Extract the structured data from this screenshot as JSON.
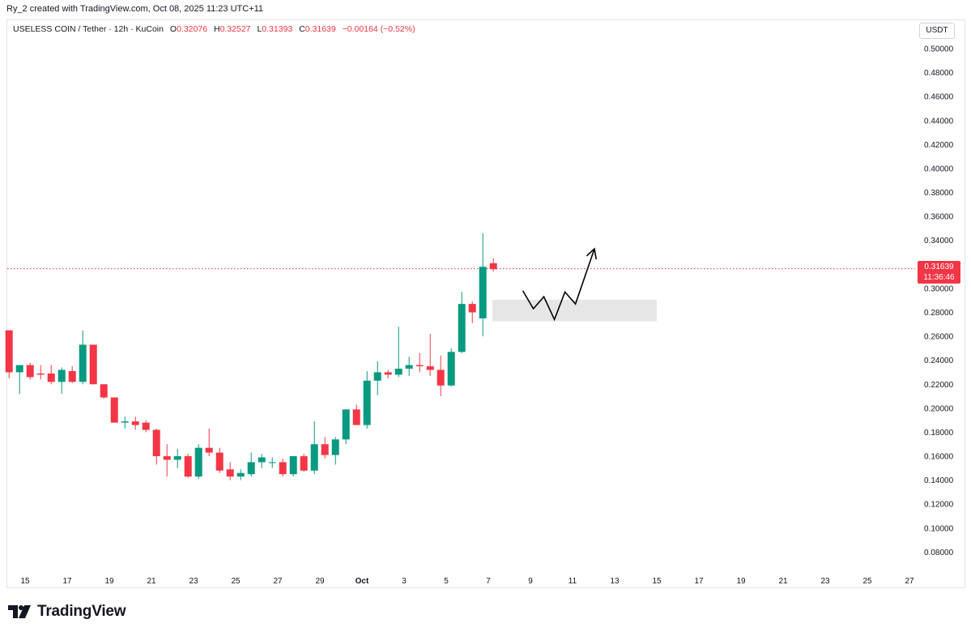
{
  "header": {
    "credit": "Ry_2 created with TradingView.com, Oct 08, 2025 11:23 UTC+11"
  },
  "legend": {
    "symbol": "USELESS COIN / Tether · 12h · KuCoin",
    "open_label": "O",
    "open": "0.32076",
    "high_label": "H",
    "high": "0.32527",
    "low_label": "L",
    "low": "0.31393",
    "close_label": "C",
    "close": "0.31639",
    "change": "−0.00164 (−0.52%)"
  },
  "price_axis": {
    "unit": "USDT"
  },
  "last_price": {
    "value": "0.31639",
    "countdown": "11:36:46",
    "color": "#f23645"
  },
  "footer": {
    "brand": "TradingView"
  },
  "colors": {
    "up": "#089981",
    "down": "#f23645",
    "zone": "#e0e0e0",
    "arrow": "#000000"
  },
  "chart_data": {
    "type": "candlestick",
    "interval": "12h",
    "ylim": [
      0.065,
      0.515
    ],
    "y_ticks": [
      "0.50000",
      "0.48000",
      "0.46000",
      "0.44000",
      "0.42000",
      "0.40000",
      "0.38000",
      "0.36000",
      "0.34000",
      "0.32000",
      "0.30000",
      "0.28000",
      "0.26000",
      "0.24000",
      "0.22000",
      "0.20000",
      "0.18000",
      "0.16000",
      "0.14000",
      "0.12000",
      "0.10000",
      "0.08000"
    ],
    "x_ticks": [
      "15",
      "17",
      "19",
      "21",
      "23",
      "25",
      "27",
      "29",
      "Oct",
      "3",
      "5",
      "7",
      "9",
      "11",
      "13",
      "15",
      "17",
      "19",
      "21",
      "23",
      "25",
      "27"
    ],
    "candles": [
      {
        "o": 0.265,
        "h": 0.265,
        "l": 0.225,
        "c": 0.23
      },
      {
        "o": 0.23,
        "h": 0.235,
        "l": 0.212,
        "c": 0.236
      },
      {
        "o": 0.236,
        "h": 0.238,
        "l": 0.224,
        "c": 0.226
      },
      {
        "o": 0.229,
        "h": 0.236,
        "l": 0.224,
        "c": 0.228
      },
      {
        "o": 0.229,
        "h": 0.236,
        "l": 0.22,
        "c": 0.222
      },
      {
        "o": 0.222,
        "h": 0.234,
        "l": 0.212,
        "c": 0.232
      },
      {
        "o": 0.231,
        "h": 0.235,
        "l": 0.221,
        "c": 0.222
      },
      {
        "o": 0.222,
        "h": 0.265,
        "l": 0.22,
        "c": 0.253
      },
      {
        "o": 0.253,
        "h": 0.253,
        "l": 0.22,
        "c": 0.22
      },
      {
        "o": 0.22,
        "h": 0.22,
        "l": 0.208,
        "c": 0.209
      },
      {
        "o": 0.209,
        "h": 0.209,
        "l": 0.188,
        "c": 0.188
      },
      {
        "o": 0.188,
        "h": 0.193,
        "l": 0.183,
        "c": 0.189
      },
      {
        "o": 0.189,
        "h": 0.193,
        "l": 0.182,
        "c": 0.186
      },
      {
        "o": 0.188,
        "h": 0.19,
        "l": 0.18,
        "c": 0.182
      },
      {
        "o": 0.182,
        "h": 0.183,
        "l": 0.153,
        "c": 0.16
      },
      {
        "o": 0.16,
        "h": 0.17,
        "l": 0.143,
        "c": 0.157
      },
      {
        "o": 0.157,
        "h": 0.166,
        "l": 0.15,
        "c": 0.16
      },
      {
        "o": 0.16,
        "h": 0.162,
        "l": 0.142,
        "c": 0.143
      },
      {
        "o": 0.143,
        "h": 0.17,
        "l": 0.141,
        "c": 0.167
      },
      {
        "o": 0.167,
        "h": 0.183,
        "l": 0.16,
        "c": 0.163
      },
      {
        "o": 0.163,
        "h": 0.167,
        "l": 0.146,
        "c": 0.148
      },
      {
        "o": 0.149,
        "h": 0.155,
        "l": 0.14,
        "c": 0.143
      },
      {
        "o": 0.143,
        "h": 0.149,
        "l": 0.14,
        "c": 0.146
      },
      {
        "o": 0.145,
        "h": 0.163,
        "l": 0.143,
        "c": 0.155
      },
      {
        "o": 0.155,
        "h": 0.162,
        "l": 0.15,
        "c": 0.159
      },
      {
        "o": 0.155,
        "h": 0.159,
        "l": 0.15,
        "c": 0.155
      },
      {
        "o": 0.155,
        "h": 0.158,
        "l": 0.143,
        "c": 0.145
      },
      {
        "o": 0.145,
        "h": 0.16,
        "l": 0.143,
        "c": 0.16
      },
      {
        "o": 0.16,
        "h": 0.162,
        "l": 0.147,
        "c": 0.148
      },
      {
        "o": 0.148,
        "h": 0.189,
        "l": 0.145,
        "c": 0.17
      },
      {
        "o": 0.17,
        "h": 0.176,
        "l": 0.158,
        "c": 0.161
      },
      {
        "o": 0.161,
        "h": 0.176,
        "l": 0.153,
        "c": 0.174
      },
      {
        "o": 0.174,
        "h": 0.199,
        "l": 0.17,
        "c": 0.199
      },
      {
        "o": 0.199,
        "h": 0.203,
        "l": 0.186,
        "c": 0.186
      },
      {
        "o": 0.186,
        "h": 0.231,
        "l": 0.183,
        "c": 0.223
      },
      {
        "o": 0.223,
        "h": 0.239,
        "l": 0.211,
        "c": 0.23
      },
      {
        "o": 0.23,
        "h": 0.232,
        "l": 0.225,
        "c": 0.228
      },
      {
        "o": 0.228,
        "h": 0.268,
        "l": 0.226,
        "c": 0.233
      },
      {
        "o": 0.233,
        "h": 0.243,
        "l": 0.227,
        "c": 0.236
      },
      {
        "o": 0.236,
        "h": 0.246,
        "l": 0.23,
        "c": 0.235
      },
      {
        "o": 0.235,
        "h": 0.262,
        "l": 0.227,
        "c": 0.232
      },
      {
        "o": 0.232,
        "h": 0.244,
        "l": 0.21,
        "c": 0.219
      },
      {
        "o": 0.219,
        "h": 0.25,
        "l": 0.218,
        "c": 0.247
      },
      {
        "o": 0.247,
        "h": 0.297,
        "l": 0.246,
        "c": 0.287
      },
      {
        "o": 0.287,
        "h": 0.289,
        "l": 0.271,
        "c": 0.28
      },
      {
        "o": 0.275,
        "h": 0.346,
        "l": 0.26,
        "c": 0.318
      },
      {
        "o": 0.321,
        "h": 0.325,
        "l": 0.314,
        "c": 0.316
      }
    ],
    "annotations": {
      "zone": {
        "x_from": "Oct 7",
        "x_to": "Oct 15",
        "y_low": 0.2725,
        "y_high": 0.2905
      },
      "projection_path": [
        [
          9.1,
          0.298
        ],
        [
          9.6,
          0.283
        ],
        [
          10.1,
          0.293
        ],
        [
          10.6,
          0.274
        ],
        [
          11.1,
          0.297
        ],
        [
          11.6,
          0.287
        ],
        [
          12.5,
          0.333
        ]
      ]
    }
  }
}
